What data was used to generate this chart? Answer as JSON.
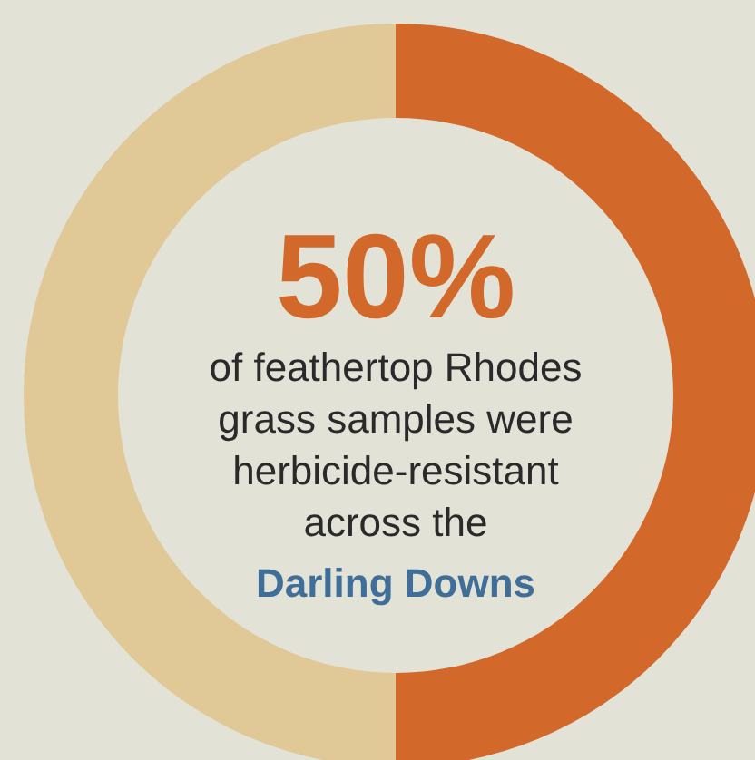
{
  "chart_data": {
    "type": "donut",
    "categories": [
      null,
      null
    ],
    "values": [
      50,
      50
    ],
    "colors": [
      "#d2692b",
      "#e0c996"
    ],
    "annotations": [
      "50%",
      "of feathertop Rhodes",
      "grass samples were",
      "herbicide-resistant",
      "across the",
      "Darling Downs"
    ]
  }
}
